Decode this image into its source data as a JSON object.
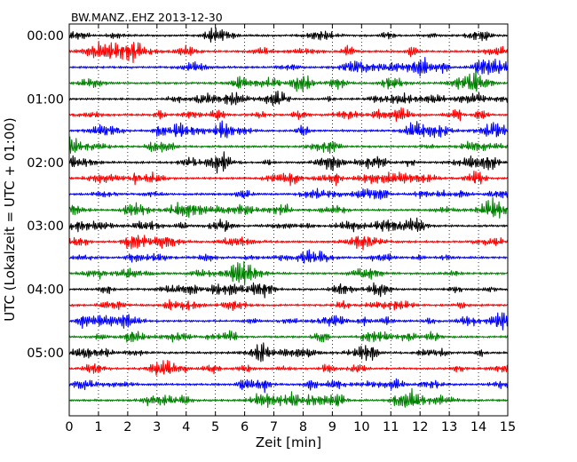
{
  "chart_data": {
    "type": "line",
    "title": "BW.MANZ..EHZ 2013-12-30",
    "xlabel": "Zeit  [min]",
    "ylabel": "UTC (Lokalzeit = UTC + 01:00)",
    "xlim": [
      0,
      15
    ],
    "ylim": [
      0,
      24
    ],
    "x_ticks": [
      "0",
      "1",
      "2",
      "3",
      "4",
      "5",
      "6",
      "7",
      "8",
      "9",
      "10",
      "11",
      "12",
      "13",
      "14",
      "15"
    ],
    "y_tick_labels": [
      "00:00",
      "01:00",
      "02:00",
      "03:00",
      "04:00",
      "05:00"
    ],
    "y_tick_rows": [
      0,
      4,
      8,
      12,
      16,
      20
    ],
    "grid": "x-dotted",
    "row_interval_minutes": 15,
    "row_count": 24,
    "trace_colors": [
      "#000000",
      "#ff0000",
      "#0000ff",
      "#008000"
    ]
  }
}
